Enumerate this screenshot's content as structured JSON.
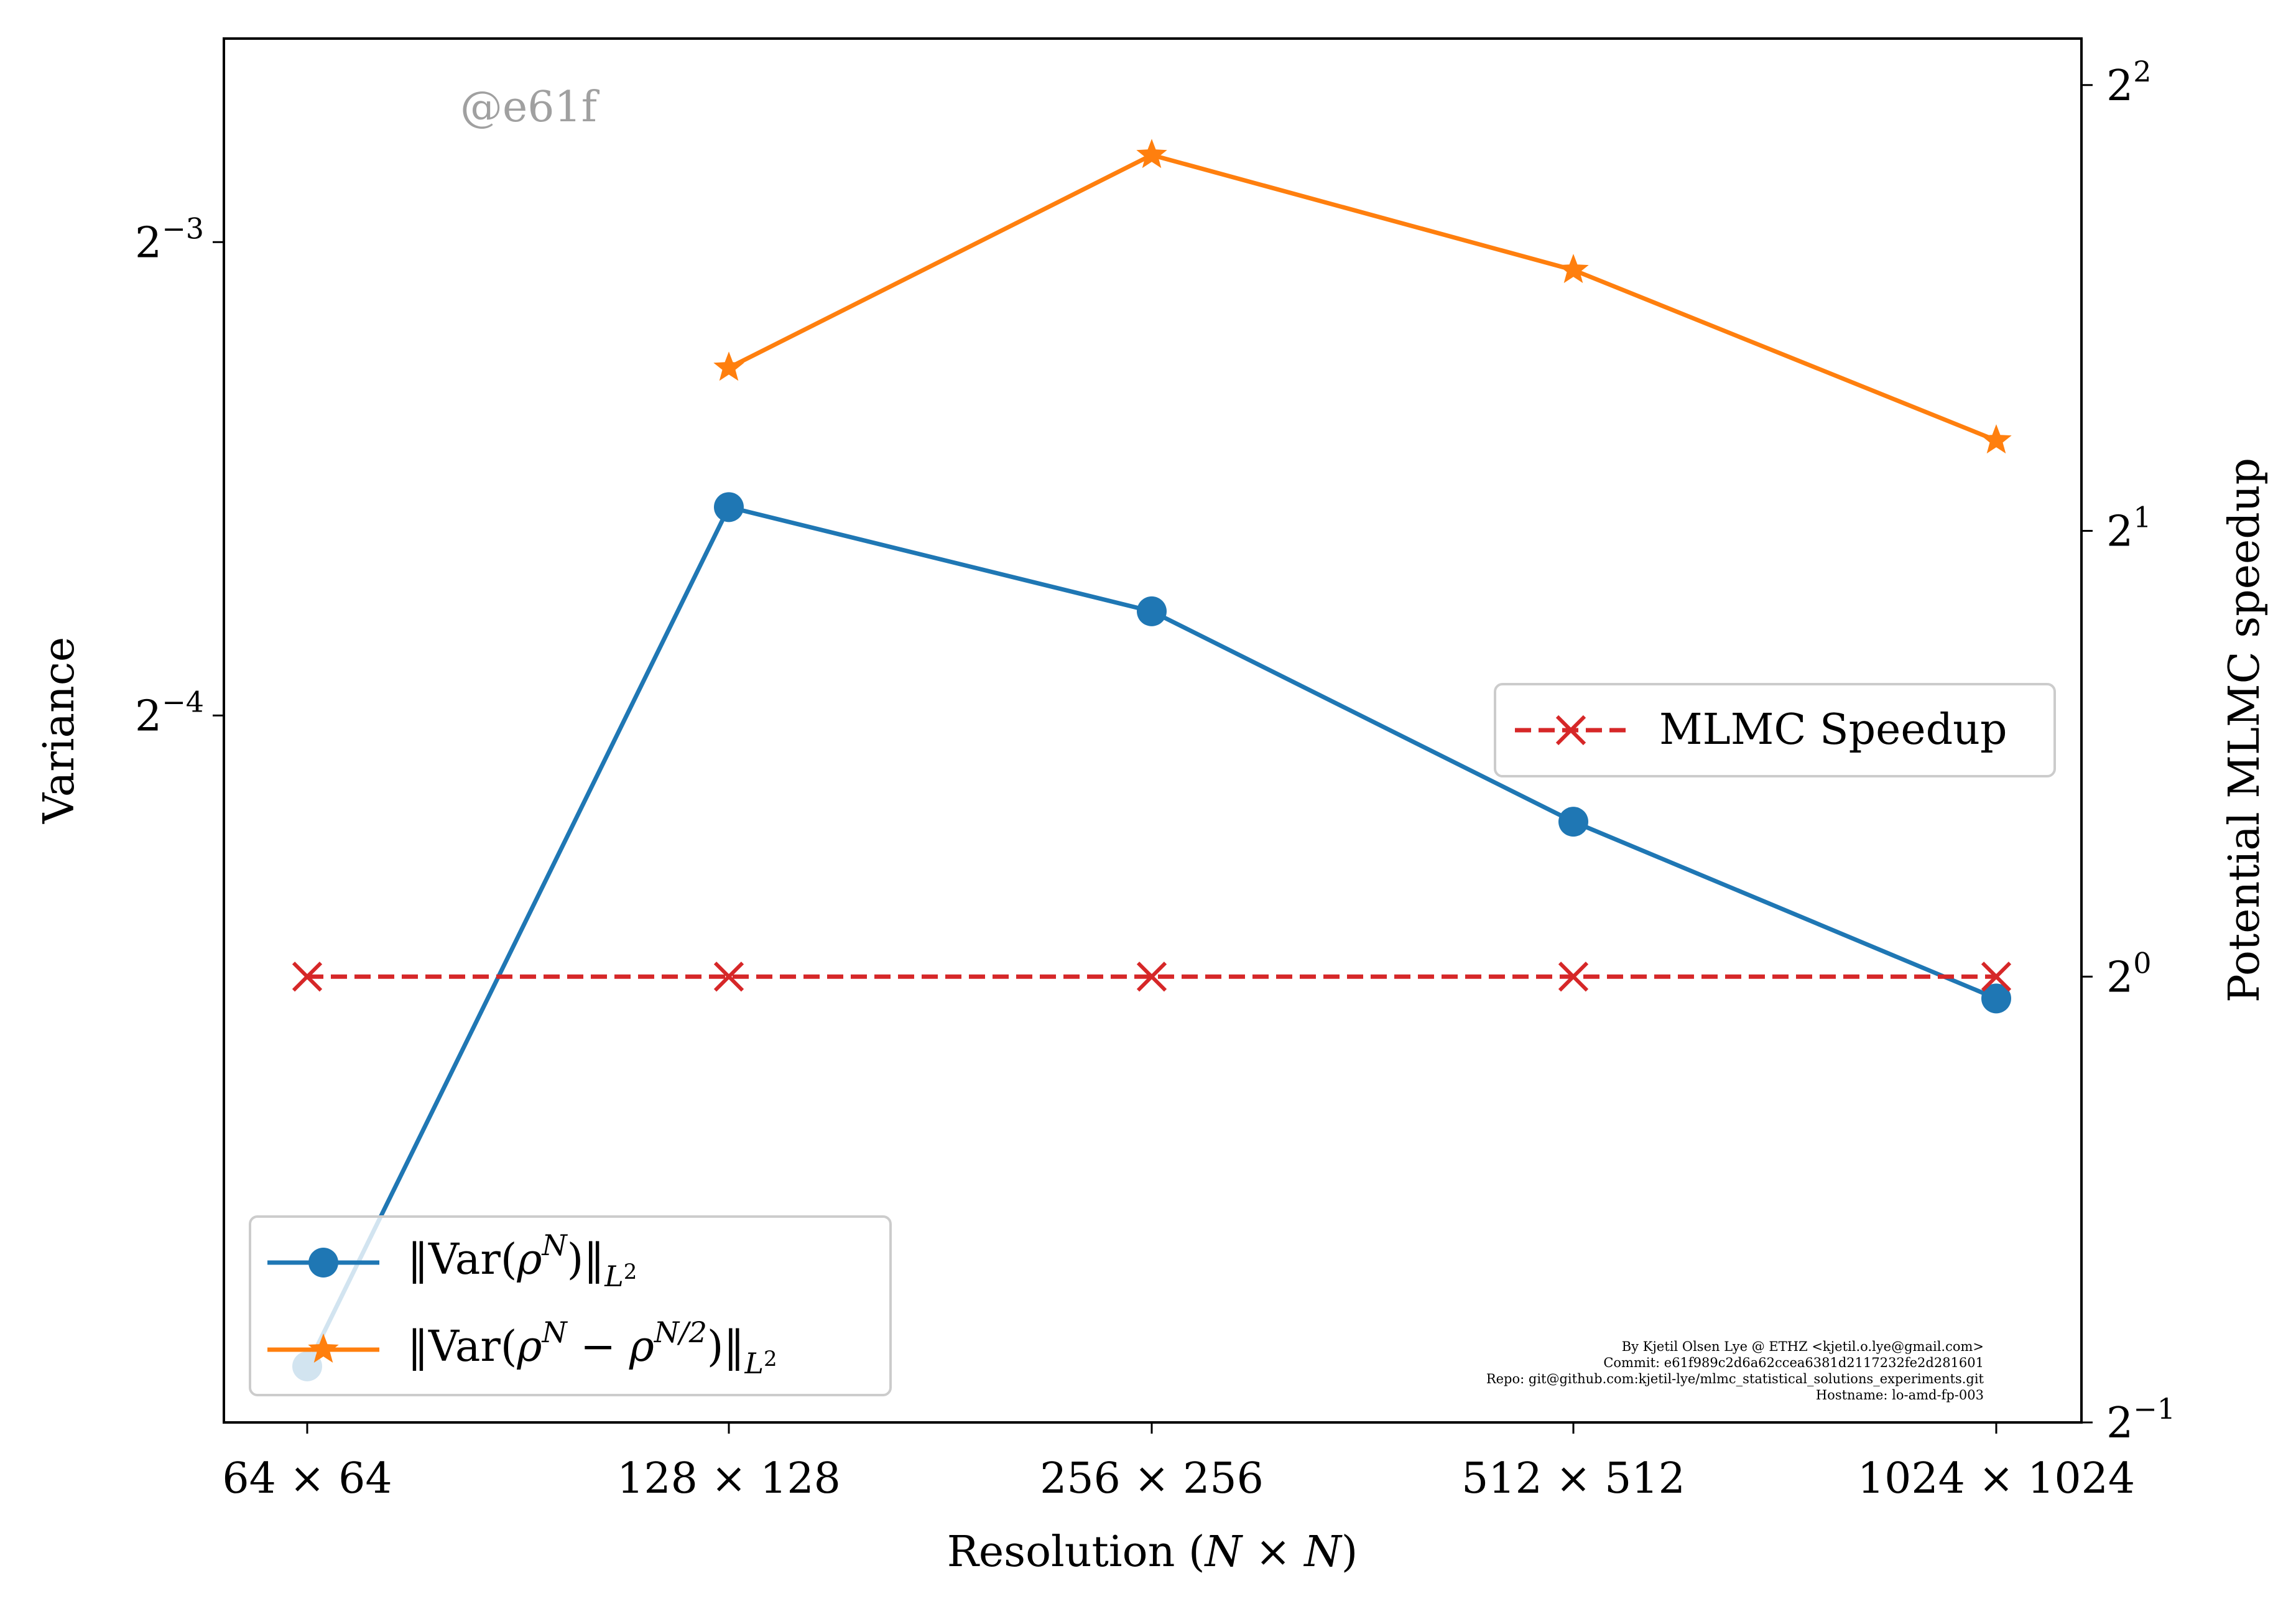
{
  "chart_data": {
    "type": "line",
    "categories": [
      "64 × 64",
      "128 × 128",
      "256 × 256",
      "512 × 512",
      "1024 × 1024"
    ],
    "xlabel": "Resolution (N × N)",
    "left_axis": {
      "label": "Variance",
      "scale": "log2",
      "range": [
        0.0222,
        0.1684
      ],
      "ticks": [
        {
          "value": 0.125,
          "base": "2",
          "exp": "−3"
        },
        {
          "value": 0.0625,
          "base": "2",
          "exp": "−4"
        }
      ]
    },
    "right_axis": {
      "label": "Potential MLMC speedup",
      "scale": "log2",
      "range": [
        0.5,
        4.3
      ],
      "ticks": [
        {
          "value": 4,
          "base": "2",
          "exp": "2"
        },
        {
          "value": 2,
          "base": "2",
          "exp": "1"
        },
        {
          "value": 1,
          "base": "2",
          "exp": "0"
        },
        {
          "value": 0.5,
          "base": "2",
          "exp": "−1"
        }
      ]
    },
    "series": [
      {
        "name": "‖Var(ρ^N)‖_L²",
        "axis": "left",
        "color": "#1f77b4",
        "marker": "circle",
        "linestyle": "solid",
        "values": [
          0.0241,
          0.0848,
          0.0728,
          0.0535,
          0.0413
        ]
      },
      {
        "name": "‖Var(ρ^N − ρ^N/2)‖_L²",
        "axis": "left",
        "color": "#ff7f0e",
        "marker": "star",
        "linestyle": "solid",
        "values": [
          null,
          0.104,
          0.142,
          0.12,
          0.0935
        ]
      },
      {
        "name": "MLMC Speedup",
        "axis": "right",
        "color": "#d62728",
        "marker": "x",
        "linestyle": "dashed",
        "values": [
          1,
          1,
          1,
          1,
          1
        ]
      }
    ],
    "legends": {
      "left_location": "lower-left",
      "right_location": "center-right"
    },
    "grid": false,
    "watermark": "@e61f",
    "credits": [
      "By Kjetil Olsen Lye @ ETHZ <kjetil.o.lye@gmail.com>",
      "Commit: e61f989c2d6a62ccea6381d2117232fe2d281601",
      "Repo: git@github.com:kjetil-lye/mlmc_statistical_solutions_experiments.git",
      "Hostname: lo-amd-fp-003"
    ]
  }
}
